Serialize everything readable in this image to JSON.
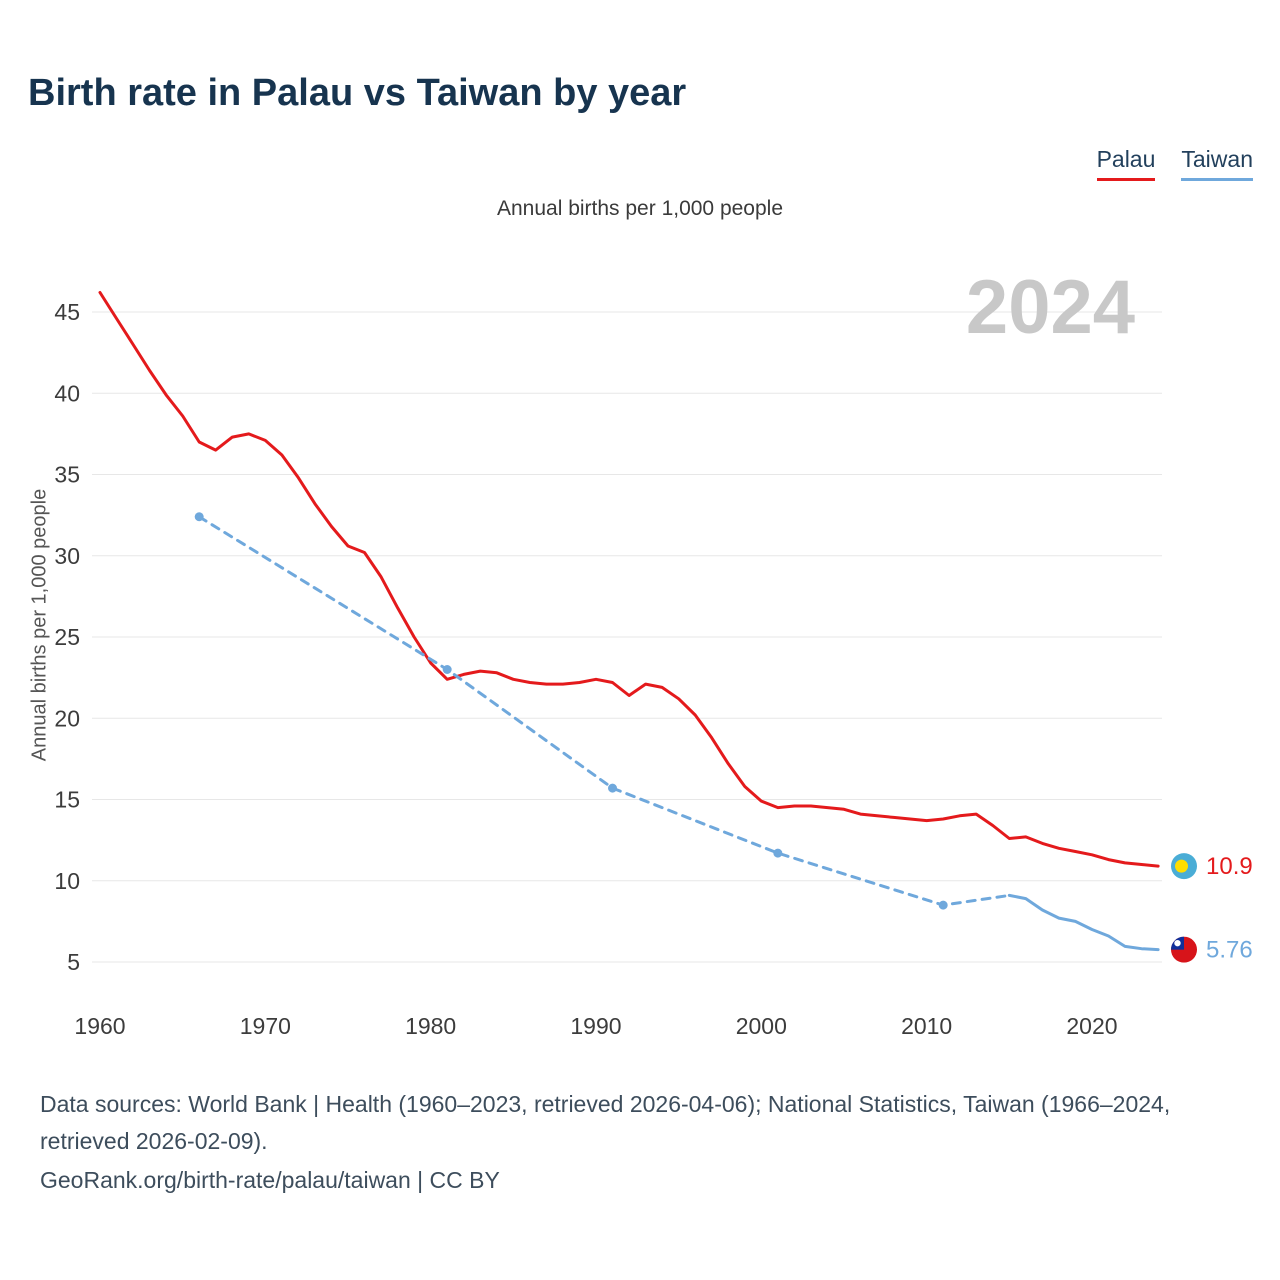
{
  "page": {
    "title": "Birth rate in Palau vs Taiwan by year",
    "subtitle": "Annual births per 1,000 people",
    "watermark": "2024",
    "footer_line1": "Data sources: World Bank | Health (1960–2023, retrieved 2026-04-06); National Statistics, Taiwan (1966–2024, retrieved 2026-02-09).",
    "footer_line2": "GeoRank.org/birth-rate/palau/taiwan | CC BY"
  },
  "legend": {
    "items": [
      {
        "label": "Palau",
        "color": "#e41a1c"
      },
      {
        "label": "Taiwan",
        "color": "#6fa8dc"
      }
    ]
  },
  "chart_data": {
    "type": "line",
    "title": "Birth rate in Palau vs Taiwan by year",
    "subtitle": "Annual births per 1,000 people",
    "xlabel": "",
    "ylabel": "Annual births per 1,000 people",
    "watermark": "2024",
    "grid": true,
    "legend_position": "top-right",
    "xlim": [
      1960,
      2024
    ],
    "ylim": [
      5,
      45
    ],
    "xticks": [
      1960,
      1970,
      1980,
      1990,
      2000,
      2010,
      2020
    ],
    "yticks": [
      5,
      10,
      15,
      20,
      25,
      30,
      35,
      40,
      45
    ],
    "colors": {
      "grid": "#e7e7e7",
      "tick": "#3c3c3c",
      "palau": "#e41a1c",
      "taiwan": "#6fa8dc"
    },
    "icons": {
      "palau_flag": {
        "base": "#4aadd6",
        "disc": "#ffde00"
      },
      "taiwan_flag": {
        "base": "#d7141a",
        "canton": "#102f9b",
        "sun": "#ffffff"
      }
    },
    "series": [
      {
        "name": "Palau",
        "color": "#e41a1c",
        "flag": "palau",
        "end_label": "10.9",
        "end_value": 10.9,
        "segments": [
          {
            "style": "solid",
            "points": [
              [
                1960,
                46.2
              ],
              [
                1961,
                44.6
              ],
              [
                1962,
                43.0
              ],
              [
                1963,
                41.4
              ],
              [
                1964,
                39.9
              ],
              [
                1965,
                38.6
              ],
              [
                1966,
                37.0
              ],
              [
                1967,
                36.5
              ],
              [
                1968,
                37.3
              ],
              [
                1969,
                37.5
              ],
              [
                1970,
                37.1
              ],
              [
                1971,
                36.2
              ],
              [
                1972,
                34.8
              ],
              [
                1973,
                33.2
              ],
              [
                1974,
                31.8
              ],
              [
                1975,
                30.6
              ],
              [
                1976,
                30.2
              ],
              [
                1977,
                28.7
              ],
              [
                1978,
                26.8
              ],
              [
                1979,
                25.0
              ],
              [
                1980,
                23.4
              ],
              [
                1981,
                22.4
              ],
              [
                1982,
                22.7
              ],
              [
                1983,
                22.9
              ],
              [
                1984,
                22.8
              ],
              [
                1985,
                22.4
              ],
              [
                1986,
                22.2
              ],
              [
                1987,
                22.1
              ],
              [
                1988,
                22.1
              ],
              [
                1989,
                22.2
              ],
              [
                1990,
                22.4
              ],
              [
                1991,
                22.2
              ],
              [
                1992,
                21.4
              ],
              [
                1993,
                22.1
              ],
              [
                1994,
                21.9
              ],
              [
                1995,
                21.2
              ],
              [
                1996,
                20.2
              ],
              [
                1997,
                18.8
              ],
              [
                1998,
                17.2
              ],
              [
                1999,
                15.8
              ],
              [
                2000,
                14.9
              ],
              [
                2001,
                14.5
              ],
              [
                2002,
                14.6
              ],
              [
                2003,
                14.6
              ],
              [
                2004,
                14.5
              ],
              [
                2005,
                14.4
              ],
              [
                2006,
                14.1
              ],
              [
                2007,
                14.0
              ],
              [
                2008,
                13.9
              ],
              [
                2009,
                13.8
              ],
              [
                2010,
                13.7
              ],
              [
                2011,
                13.8
              ],
              [
                2012,
                14.0
              ],
              [
                2013,
                14.1
              ],
              [
                2014,
                13.4
              ],
              [
                2015,
                12.6
              ],
              [
                2016,
                12.7
              ],
              [
                2017,
                12.3
              ],
              [
                2018,
                12.0
              ],
              [
                2019,
                11.8
              ],
              [
                2020,
                11.6
              ],
              [
                2021,
                11.3
              ],
              [
                2022,
                11.1
              ],
              [
                2023,
                11.0
              ],
              [
                2024,
                10.9
              ]
            ]
          }
        ],
        "markers": []
      },
      {
        "name": "Taiwan",
        "color": "#6fa8dc",
        "flag": "taiwan",
        "end_label": "5.76",
        "end_value": 5.76,
        "segments": [
          {
            "style": "dashed",
            "points": [
              [
                1966,
                32.4
              ],
              [
                1981,
                23.0
              ],
              [
                1991,
                15.7
              ],
              [
                2001,
                11.7
              ],
              [
                2011,
                8.5
              ],
              [
                2015,
                9.1
              ]
            ]
          },
          {
            "style": "solid",
            "points": [
              [
                2015,
                9.1
              ],
              [
                2016,
                8.9
              ],
              [
                2017,
                8.2
              ],
              [
                2018,
                7.7
              ],
              [
                2019,
                7.5
              ],
              [
                2020,
                7.0
              ],
              [
                2021,
                6.6
              ],
              [
                2022,
                5.96
              ],
              [
                2023,
                5.82
              ],
              [
                2024,
                5.76
              ]
            ]
          }
        ],
        "markers": [
          [
            1966,
            32.4
          ],
          [
            1981,
            23.0
          ],
          [
            1991,
            15.7
          ],
          [
            2001,
            11.7
          ],
          [
            2011,
            8.5
          ]
        ]
      }
    ]
  }
}
